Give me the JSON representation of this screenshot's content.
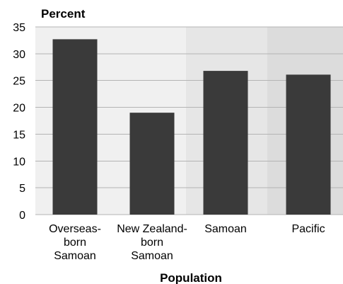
{
  "chart_data": {
    "type": "bar",
    "ylabel": "Percent",
    "xlabel": "Population",
    "ylim": [
      0,
      35
    ],
    "yticks": [
      0,
      5,
      10,
      15,
      20,
      25,
      30,
      35
    ],
    "grid": true,
    "categories": [
      [
        "Overseas-",
        "born",
        "Samoan"
      ],
      [
        "New Zealand-",
        "born",
        "Samoan"
      ],
      [
        "Samoan"
      ],
      [
        "Pacific"
      ]
    ],
    "values": [
      32.7,
      19.0,
      26.8,
      26.1
    ],
    "colors": {
      "bar": "#3a3a3a",
      "band_light": "#f0f0f0",
      "band_medium": "#e6e6e6",
      "band_dark": "#dcdcdc",
      "grid": "#b4b4b4"
    }
  }
}
